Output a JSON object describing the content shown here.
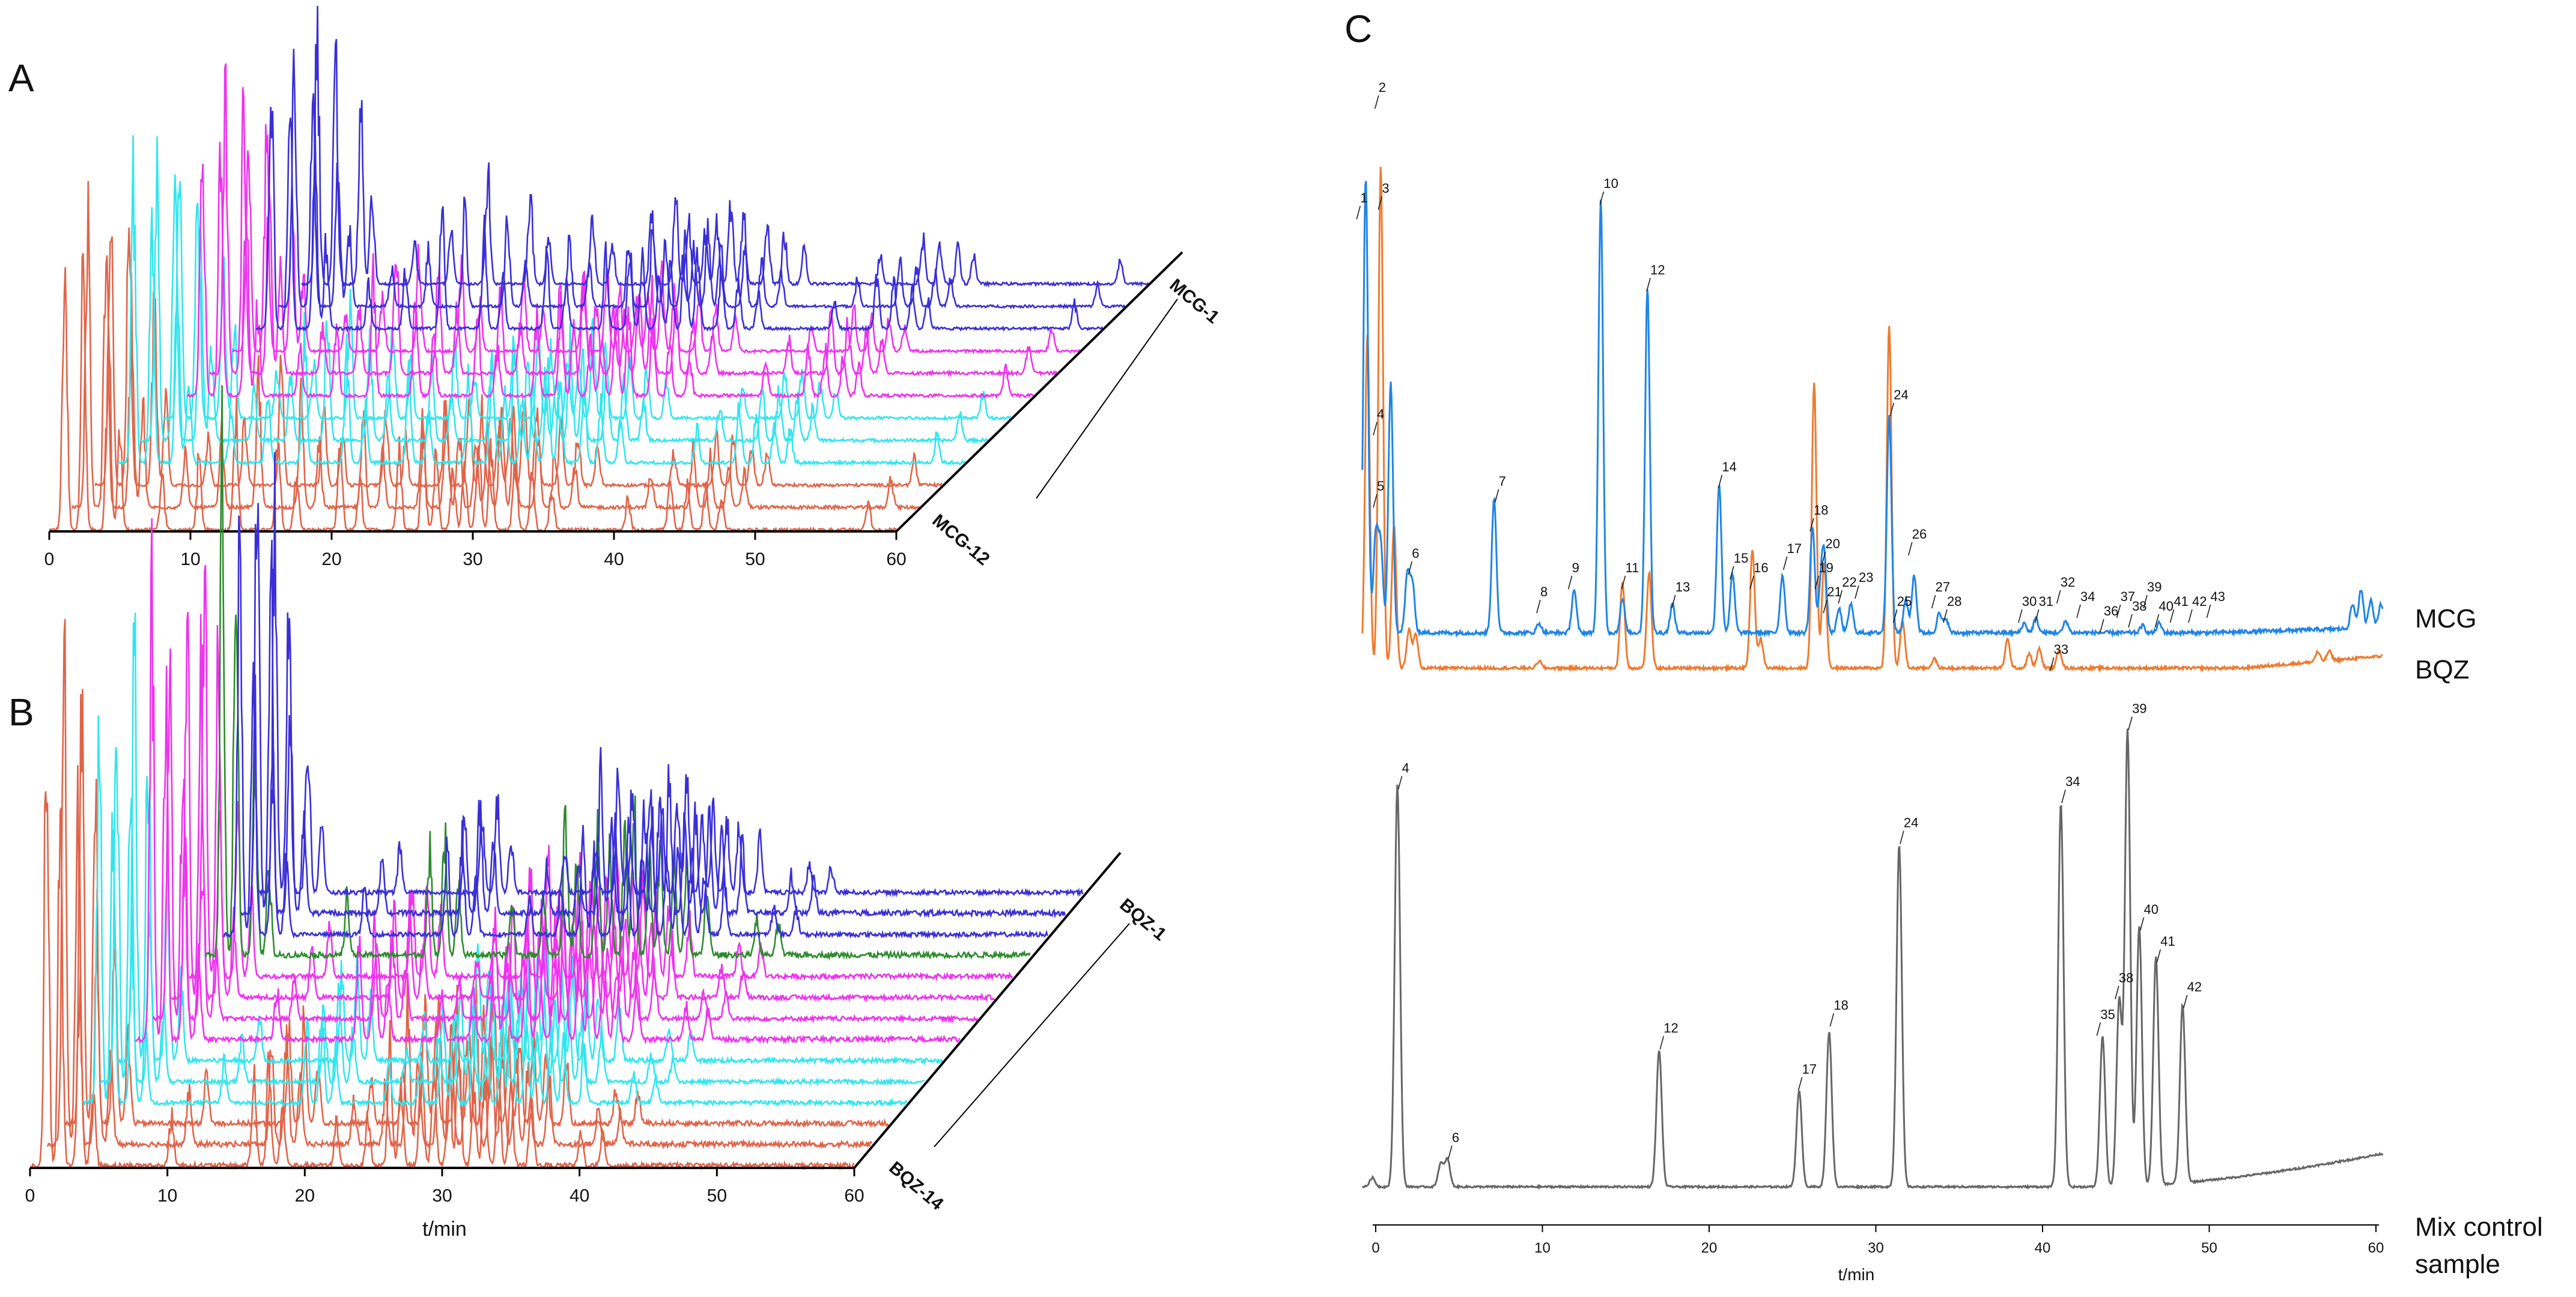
{
  "chart_data": [
    {
      "id": "A",
      "type": "line",
      "title": "A",
      "xlabel": "",
      "ylabel": "",
      "xlim": [
        0,
        60
      ],
      "x_ticks": [
        "0",
        "10",
        "20",
        "30",
        "40",
        "50",
        "60"
      ],
      "stack_labels": {
        "back": "MCG-1",
        "front": "MCG-12"
      },
      "series_colors": [
        "#3a2fd6",
        "#3a2fd6",
        "#3a2fd6",
        "#ee33ee",
        "#ee33ee",
        "#ee33ee",
        "#33e6ee",
        "#33e6ee",
        "#33e6ee",
        "#e0644a",
        "#e0644a",
        "#e0644a"
      ],
      "series_count": 12,
      "peaks": [
        [
          1.1,
          1.0
        ],
        [
          2.4,
          0.95
        ],
        [
          4.2,
          0.7
        ],
        [
          5.0,
          0.35
        ],
        [
          8.0,
          0.18
        ],
        [
          10.6,
          0.25
        ],
        [
          13.2,
          0.45
        ],
        [
          16.2,
          0.38
        ],
        [
          17.5,
          0.22
        ],
        [
          20.6,
          0.3
        ],
        [
          22.0,
          0.18
        ],
        [
          24.8,
          0.3
        ],
        [
          26.5,
          0.35
        ],
        [
          27.4,
          0.28
        ],
        [
          28.6,
          0.22
        ],
        [
          29.4,
          0.25
        ],
        [
          30.4,
          0.35
        ],
        [
          31.3,
          0.3
        ],
        [
          33.0,
          0.25
        ],
        [
          34.2,
          0.2
        ],
        [
          35.6,
          0.15
        ],
        [
          41.0,
          0.12
        ],
        [
          44.0,
          0.2
        ],
        [
          45.2,
          0.18
        ],
        [
          46.5,
          0.15
        ],
        [
          47.6,
          0.12
        ],
        [
          58.0,
          0.1
        ]
      ]
    },
    {
      "id": "B",
      "type": "line",
      "title": "B",
      "xlabel": "t/min",
      "ylabel": "",
      "xlim": [
        0,
        60
      ],
      "x_ticks": [
        "0",
        "10",
        "20",
        "30",
        "40",
        "50",
        "60"
      ],
      "stack_labels": {
        "back": "BQZ-1",
        "front": "BQZ-14"
      },
      "series_colors": [
        "#3a2fd6",
        "#3a2fd6",
        "#3a2fd6",
        "#2e8b2e",
        "#ee33ee",
        "#ee33ee",
        "#ee33ee",
        "#ee33ee",
        "#33e6ee",
        "#33e6ee",
        "#33e6ee",
        "#e0644a",
        "#e0644a",
        "#e0644a"
      ],
      "series_count": 14,
      "peaks": [
        [
          1.2,
          1.0
        ],
        [
          2.2,
          0.8
        ],
        [
          3.6,
          0.45
        ],
        [
          4.6,
          0.2
        ],
        [
          10.3,
          0.12
        ],
        [
          16.3,
          0.22
        ],
        [
          17.4,
          0.25
        ],
        [
          18.4,
          0.15
        ],
        [
          22.3,
          0.1
        ],
        [
          24.6,
          0.12
        ],
        [
          26.2,
          0.3
        ],
        [
          27.0,
          0.2
        ],
        [
          28.5,
          0.28
        ],
        [
          29.4,
          0.22
        ],
        [
          30.5,
          0.25
        ],
        [
          31.2,
          0.3
        ],
        [
          32.3,
          0.2
        ],
        [
          33.1,
          0.22
        ],
        [
          34.1,
          0.2
        ],
        [
          35.0,
          0.18
        ],
        [
          36.5,
          0.15
        ],
        [
          40.1,
          0.08
        ],
        [
          41.7,
          0.07
        ]
      ]
    },
    {
      "id": "C",
      "type": "line",
      "title": "C",
      "xlabel": "t/min",
      "ylabel": "",
      "xlim": [
        0,
        60
      ],
      "x_ticks": [
        "0",
        "10",
        "20",
        "30",
        "40",
        "50",
        "60"
      ],
      "series": [
        {
          "name": "MCG",
          "color": "#1f84e6",
          "peaks": [
            [
              -0.6,
              0.95
            ],
            [
              0.0,
              0.2
            ],
            [
              0.3,
              0.18
            ],
            [
              0.9,
              0.52
            ],
            [
              1.9,
              0.12
            ],
            [
              2.2,
              0.1
            ],
            [
              7.1,
              0.28
            ],
            [
              9.8,
              0.02
            ],
            [
              11.9,
              0.09
            ],
            [
              13.5,
              0.9
            ],
            [
              14.8,
              0.07
            ],
            [
              16.3,
              0.72
            ],
            [
              17.8,
              0.06
            ],
            [
              20.6,
              0.31
            ],
            [
              21.4,
              0.12
            ],
            [
              24.4,
              0.12
            ],
            [
              26.2,
              0.22
            ],
            [
              26.7,
              0.08
            ],
            [
              26.9,
              0.15
            ],
            [
              27.8,
              0.05
            ],
            [
              28.5,
              0.06
            ],
            [
              30.8,
              0.45
            ],
            [
              31.8,
              0.07
            ],
            [
              32.3,
              0.12
            ],
            [
              33.8,
              0.04
            ],
            [
              34.2,
              0.03
            ],
            [
              38.9,
              0.02
            ],
            [
              39.6,
              0.03
            ],
            [
              41.4,
              0.025
            ],
            [
              46.0,
              0.015
            ],
            [
              47.0,
              0.02
            ],
            [
              58.6,
              0.05
            ],
            [
              59.1,
              0.08
            ],
            [
              59.7,
              0.06
            ],
            [
              60.3,
              0.05
            ]
          ]
        },
        {
          "name": "BQZ",
          "color": "#ee7a30",
          "peaks": [
            [
              -0.5,
              0.7
            ],
            [
              0.3,
              1.05
            ],
            [
              1.1,
              0.3
            ],
            [
              2.0,
              0.08
            ],
            [
              2.4,
              0.07
            ],
            [
              9.8,
              0.015
            ],
            [
              14.8,
              0.18
            ],
            [
              16.4,
              0.2
            ],
            [
              22.6,
              0.25
            ],
            [
              23.1,
              0.06
            ],
            [
              26.3,
              0.6
            ],
            [
              26.9,
              0.22
            ],
            [
              30.8,
              0.72
            ],
            [
              31.6,
              0.1
            ],
            [
              33.5,
              0.02
            ],
            [
              37.9,
              0.06
            ],
            [
              39.2,
              0.03
            ],
            [
              39.8,
              0.04
            ],
            [
              41.0,
              0.04
            ],
            [
              56.5,
              0.02
            ],
            [
              57.2,
              0.02
            ]
          ]
        },
        {
          "name": "Mix control sample",
          "color": "#666666",
          "peaks": [
            [
              -0.2,
              0.02
            ],
            [
              1.3,
              0.88
            ],
            [
              3.9,
              0.05
            ],
            [
              4.3,
              0.06
            ],
            [
              17.0,
              0.3
            ],
            [
              25.4,
              0.21
            ],
            [
              27.2,
              0.34
            ],
            [
              31.4,
              0.75
            ],
            [
              41.1,
              0.84
            ],
            [
              43.6,
              0.33
            ],
            [
              44.6,
              0.41
            ],
            [
              45.1,
              1.0
            ],
            [
              45.8,
              0.57
            ],
            [
              46.8,
              0.5
            ],
            [
              48.4,
              0.39
            ]
          ]
        }
      ],
      "peak_labels_MCG_BQZ": [
        {
          "label": "1",
          "x": -1.0,
          "y": 0.9
        },
        {
          "label": "2",
          "x": 0.1,
          "y": 1.13
        },
        {
          "label": "3",
          "x": 0.3,
          "y": 0.92
        },
        {
          "label": "4",
          "x": 0.0,
          "y": 0.45
        },
        {
          "label": "5",
          "x": 0.0,
          "y": 0.3
        },
        {
          "label": "6",
          "x": 2.1,
          "y": 0.16
        },
        {
          "label": "7",
          "x": 7.3,
          "y": 0.31
        },
        {
          "label": "8",
          "x": 9.8,
          "y": 0.08
        },
        {
          "label": "9",
          "x": 11.7,
          "y": 0.13
        },
        {
          "label": "10",
          "x": 13.6,
          "y": 0.93
        },
        {
          "label": "11",
          "x": 14.9,
          "y": 0.13
        },
        {
          "label": "12",
          "x": 16.4,
          "y": 0.75
        },
        {
          "label": "13",
          "x": 17.9,
          "y": 0.09
        },
        {
          "label": "14",
          "x": 20.7,
          "y": 0.34
        },
        {
          "label": "15",
          "x": 21.4,
          "y": 0.15
        },
        {
          "label": "16",
          "x": 22.6,
          "y": 0.13
        },
        {
          "label": "17",
          "x": 24.6,
          "y": 0.17
        },
        {
          "label": "18",
          "x": 26.2,
          "y": 0.25
        },
        {
          "label": "19",
          "x": 26.5,
          "y": 0.13
        },
        {
          "label": "20",
          "x": 26.9,
          "y": 0.18
        },
        {
          "label": "21",
          "x": 27.0,
          "y": 0.08
        },
        {
          "label": "22",
          "x": 27.9,
          "y": 0.1
        },
        {
          "label": "23",
          "x": 28.9,
          "y": 0.11
        },
        {
          "label": "24",
          "x": 31.0,
          "y": 0.49
        },
        {
          "label": "25",
          "x": 31.2,
          "y": 0.06
        },
        {
          "label": "26",
          "x": 32.1,
          "y": 0.2
        },
        {
          "label": "27",
          "x": 33.5,
          "y": 0.09
        },
        {
          "label": "28",
          "x": 34.2,
          "y": 0.06
        },
        {
          "label": "30",
          "x": 38.7,
          "y": 0.06
        },
        {
          "label": "31",
          "x": 39.7,
          "y": 0.06
        },
        {
          "label": "32",
          "x": 41.0,
          "y": 0.1
        },
        {
          "label": "33",
          "x": 40.6,
          "y": -0.04
        },
        {
          "label": "34",
          "x": 42.2,
          "y": 0.07
        },
        {
          "label": "36",
          "x": 43.6,
          "y": 0.04
        },
        {
          "label": "37",
          "x": 44.6,
          "y": 0.07
        },
        {
          "label": "38",
          "x": 45.3,
          "y": 0.05
        },
        {
          "label": "39",
          "x": 46.2,
          "y": 0.09
        },
        {
          "label": "40",
          "x": 46.9,
          "y": 0.05
        },
        {
          "label": "41",
          "x": 47.8,
          "y": 0.06
        },
        {
          "label": "42",
          "x": 48.9,
          "y": 0.06
        },
        {
          "label": "43",
          "x": 50.0,
          "y": 0.07
        }
      ],
      "peak_labels_Mix": [
        {
          "label": "4",
          "x": 1.5,
          "y": 0.91
        },
        {
          "label": "6",
          "x": 4.5,
          "y": 0.1
        },
        {
          "label": "12",
          "x": 17.2,
          "y": 0.34
        },
        {
          "label": "17",
          "x": 25.5,
          "y": 0.25
        },
        {
          "label": "18",
          "x": 27.4,
          "y": 0.39
        },
        {
          "label": "24",
          "x": 31.6,
          "y": 0.79
        },
        {
          "label": "34",
          "x": 41.3,
          "y": 0.88
        },
        {
          "label": "35",
          "x": 43.4,
          "y": 0.37
        },
        {
          "label": "38",
          "x": 44.5,
          "y": 0.45
        },
        {
          "label": "39",
          "x": 45.3,
          "y": 1.04
        },
        {
          "label": "40",
          "x": 46.0,
          "y": 0.6
        },
        {
          "label": "41",
          "x": 47.0,
          "y": 0.53
        },
        {
          "label": "42",
          "x": 48.6,
          "y": 0.43
        }
      ]
    }
  ],
  "legend": {
    "mcg": "MCG",
    "bqz": "BQZ",
    "mix_line1": "Mix control",
    "mix_line2": "sample"
  }
}
